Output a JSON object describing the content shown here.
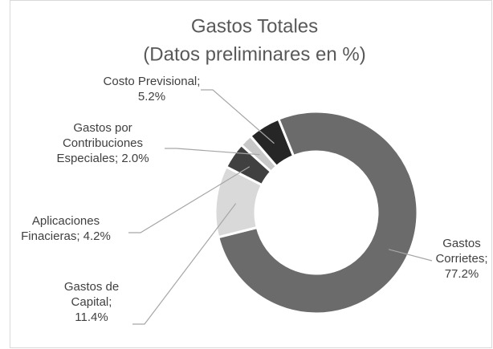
{
  "chart_data": {
    "type": "donut",
    "title": "Gastos Totales",
    "subtitle": "(Datos preliminares en %)",
    "categories": [
      "Gastos Corrietes",
      "Gastos de Capital",
      "Aplicaciones Finacieras",
      "Gastos por Contribuciones Especiales",
      "Costo Previsional"
    ],
    "values": [
      77.2,
      11.4,
      4.2,
      2.0,
      5.2
    ],
    "value_labels": [
      "77.2%",
      "11.4%",
      "4.2%",
      "2.0%",
      "5.2%"
    ],
    "label_separator": "; ",
    "colors": [
      "#6b6b6b",
      "#d9d9d9",
      "#404040",
      "#c8c8c8",
      "#262626"
    ]
  }
}
